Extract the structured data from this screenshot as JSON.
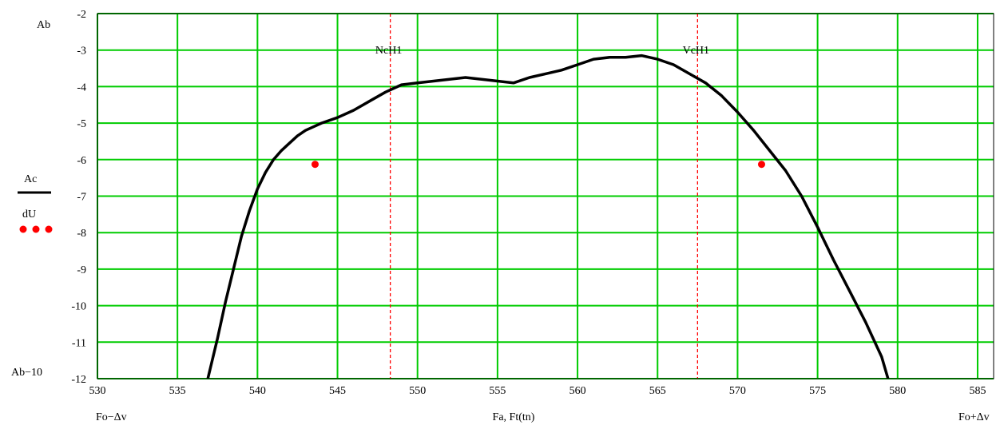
{
  "chart_data": {
    "type": "line",
    "xlim": [
      530,
      586
    ],
    "ylim": [
      -12,
      -2
    ],
    "x_ticks": [
      530,
      535,
      540,
      545,
      550,
      555,
      560,
      565,
      570,
      575,
      580,
      585
    ],
    "y_ticks": [
      -2,
      -3,
      -4,
      -5,
      -6,
      -7,
      -8,
      -9,
      -10,
      -11,
      -12
    ],
    "grid": true,
    "grid_color": "#00cc00",
    "x_min_label": "Fo−Δv",
    "x_max_label": "Fo+Δv",
    "xlabel": "Fa, Ft(tn)",
    "y_max_label": "Ab",
    "y_min_label": "Ab−10",
    "legend": [
      {
        "name": "Ac",
        "style": "solid",
        "color": "#000000"
      },
      {
        "name": "dU",
        "style": "dots",
        "color": "#ff0000"
      }
    ],
    "vlines": [
      {
        "x": 548.3,
        "label": "NcH1",
        "color": "#ff0000"
      },
      {
        "x": 567.5,
        "label": "VcH1",
        "color": "#ff0000"
      }
    ],
    "series": [
      {
        "name": "Ac",
        "color": "#000000",
        "x": [
          536.9,
          537.5,
          538.0,
          538.5,
          539.0,
          539.5,
          540.0,
          540.5,
          541.0,
          541.5,
          542.0,
          542.5,
          543.0,
          543.5,
          544.0,
          545.0,
          546.0,
          547.0,
          548.0,
          549.0,
          550.0,
          551.0,
          552.0,
          553.0,
          554.0,
          555.0,
          556.0,
          557.0,
          558.0,
          559.0,
          560.0,
          561.0,
          562.0,
          563.0,
          564.0,
          565.0,
          566.0,
          567.0,
          568.0,
          569.0,
          570.0,
          571.0,
          572.0,
          573.0,
          574.0,
          575.0,
          576.0,
          577.0,
          578.0,
          579.0,
          579.4
        ],
        "y": [
          -12.0,
          -10.9,
          -9.9,
          -9.0,
          -8.1,
          -7.4,
          -6.8,
          -6.35,
          -6.0,
          -5.75,
          -5.55,
          -5.35,
          -5.2,
          -5.1,
          -5.0,
          -4.85,
          -4.65,
          -4.4,
          -4.15,
          -3.95,
          -3.9,
          -3.85,
          -3.8,
          -3.75,
          -3.8,
          -3.85,
          -3.9,
          -3.75,
          -3.65,
          -3.55,
          -3.4,
          -3.25,
          -3.2,
          -3.2,
          -3.15,
          -3.25,
          -3.4,
          -3.65,
          -3.9,
          -4.25,
          -4.7,
          -5.2,
          -5.75,
          -6.3,
          -7.0,
          -7.85,
          -8.75,
          -9.6,
          -10.45,
          -11.4,
          -12.0
        ]
      },
      {
        "name": "dU",
        "color": "#ff0000",
        "x": [
          543.6,
          571.5
        ],
        "y": [
          -6.13,
          -6.13
        ]
      }
    ]
  }
}
